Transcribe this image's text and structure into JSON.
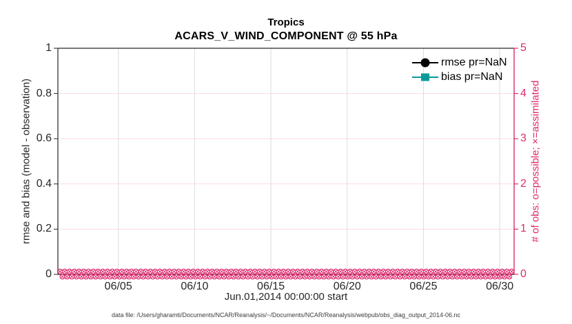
{
  "chart_data": {
    "type": "line",
    "title": "Tropics",
    "subtitle": "ACARS_V_WIND_COMPONENT @ 55 hPa",
    "xlabel": "Jun.01,2014 00:00:00 start",
    "ylabel_left": "rmse and bias (model - observation)",
    "ylabel_right": "# of obs: o=possible; ×=assimilated",
    "x_tick_labels": [
      "06/05",
      "06/10",
      "06/15",
      "06/20",
      "06/25",
      "06/30"
    ],
    "y_left": {
      "min": 0,
      "max": 1,
      "tick_labels": [
        "0",
        "0.2",
        "0.4",
        "0.6",
        "0.8",
        "1"
      ]
    },
    "y_right": {
      "min": 0,
      "max": 5,
      "tick_labels": [
        "0",
        "1",
        "2",
        "3",
        "4",
        "5"
      ]
    },
    "grid": true,
    "legend": {
      "position": "top-right",
      "items": [
        {
          "label": "rmse pr=NaN",
          "marker": "filled-circle",
          "color": "#000000"
        },
        {
          "label": "bias pr=NaN",
          "marker": "filled-square",
          "color": "#0d9999"
        }
      ]
    },
    "series": [
      {
        "name": "rmse pr=NaN",
        "axis": "left",
        "color": "#000000",
        "marker": "circle",
        "values": "NaN"
      },
      {
        "name": "bias pr=NaN",
        "axis": "left",
        "color": "#0d9999",
        "marker": "square",
        "values": "NaN"
      },
      {
        "name": "possible observations (o)",
        "axis": "right",
        "color": "#de2a6d",
        "marker": "o",
        "constant_value": 0
      },
      {
        "name": "assimilated observations (x)",
        "axis": "right",
        "color": "#de2a6d",
        "marker": "x",
        "constant_value": 0
      }
    ],
    "colors": {
      "axis_dark": "#262626",
      "obs_pink": "#de2a6d",
      "grid_vertical": "#dcdcdc",
      "grid_horizontal": "#f7d9e6",
      "bias_teal": "#0d9999",
      "rmse_black": "#000000"
    }
  },
  "footer": {
    "text": "data file: /Users/gharamti/Documents/NCAR/Reanalysis/~/Documents/NCAR/Reanalysis/webpub/obs_diag_output_2014-06.nc"
  }
}
